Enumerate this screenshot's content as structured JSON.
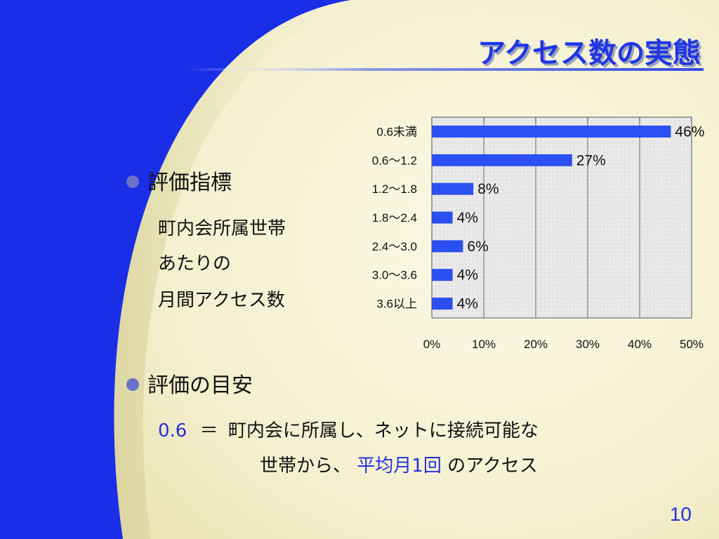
{
  "slide": {
    "title": "アクセス数の実態",
    "page_number": "10"
  },
  "section1": {
    "heading": "評価指標",
    "lines": [
      "町内会所属世帯",
      "あたりの",
      "月間アクセス数"
    ]
  },
  "section2": {
    "heading": "評価の目安",
    "eq_value": "0.6",
    "eq_sign": "＝",
    "line1_rest": "町内会に所属し、ネットに接続可能な",
    "line2_prefix": "世帯から、",
    "line2_highlight": "平均月1回",
    "line2_suffix": "のアクセス"
  },
  "colors": {
    "background_blue": "#1a2ee8",
    "panel_cream": "#f6f3d2",
    "bar_blue": "#2b4ff0",
    "title_blue": "#1f35e6"
  },
  "chart_data": {
    "type": "bar",
    "orientation": "horizontal",
    "categories": [
      "0.6未満",
      "0.6～1.2",
      "1.2～1.8",
      "1.8～2.4",
      "2.4～3.0",
      "3.0～3.6",
      "3.6以上"
    ],
    "values": [
      46,
      27,
      8,
      4,
      6,
      4,
      4
    ],
    "data_labels": [
      "46%",
      "27%",
      "8%",
      "4%",
      "6%",
      "4%",
      "4%"
    ],
    "xlim": [
      0,
      50
    ],
    "x_ticks": [
      "0%",
      "10%",
      "20%",
      "30%",
      "40%",
      "50%"
    ],
    "grid": true,
    "legend": "none"
  }
}
